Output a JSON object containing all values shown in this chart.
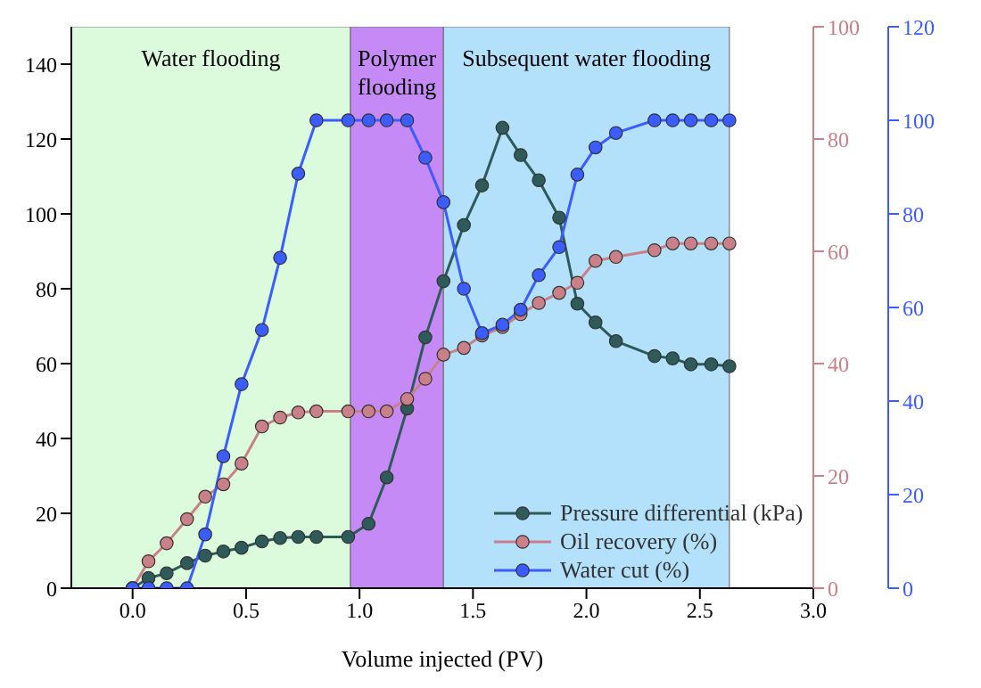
{
  "chart_data": {
    "type": "line",
    "xlabel": "Volume injected (PV)",
    "x": [
      0,
      0.07,
      0.15,
      0.24,
      0.32,
      0.4,
      0.48,
      0.57,
      0.65,
      0.73,
      0.81,
      0.95,
      1.04,
      1.12,
      1.21,
      1.29,
      1.37,
      1.46,
      1.54,
      1.63,
      1.71,
      1.79,
      1.88,
      1.96,
      2.04,
      2.13,
      2.3,
      2.38,
      2.46,
      2.55,
      2.63
    ],
    "series": [
      {
        "name": "Pressure differential (kPa)",
        "color": "#2e5a5a",
        "values": [
          0,
          2.7,
          4,
          6.7,
          8.7,
          9.8,
          10.8,
          12.5,
          13.4,
          13.7,
          13.7,
          13.7,
          17.2,
          29.6,
          48,
          67,
          82,
          97,
          107.6,
          123,
          115.7,
          109,
          99,
          76,
          71,
          66,
          62,
          61.4,
          59.8,
          59.8,
          59.3
        ]
      },
      {
        "name": "Oil recovery (%)",
        "color": "#c98088",
        "axis": "y2",
        "values": [
          0,
          4.8,
          8,
          12.3,
          16.3,
          18.5,
          22.2,
          28.8,
          30.4,
          31.3,
          31.5,
          31.5,
          31.5,
          31.5,
          33.7,
          37.3,
          41.6,
          42.8,
          45,
          46.5,
          48.8,
          50.8,
          52.6,
          54.4,
          58.3,
          59,
          60.2,
          61.4,
          61.4,
          61.4,
          61.4
        ]
      },
      {
        "name": "Water cut (%)",
        "color": "#3b5cff",
        "axis": "y3",
        "values": [
          0,
          0,
          0,
          0,
          11.5,
          28.2,
          43.6,
          55.2,
          70.6,
          88.6,
          100,
          100,
          100,
          100,
          100,
          92,
          82.5,
          64,
          54.5,
          56.3,
          59.5,
          66.9,
          72.9,
          88.4,
          94.2,
          97.3,
          100,
          100,
          100,
          100,
          100
        ]
      }
    ],
    "xlim": [
      -0.27,
      3.0
    ],
    "xticks": [
      {
        "value": 0,
        "label": "0.0"
      },
      {
        "value": 0.5,
        "label": "0.5"
      },
      {
        "value": 1,
        "label": "1.0"
      },
      {
        "value": 1.5,
        "label": "1.5"
      },
      {
        "value": 2,
        "label": "2.0"
      },
      {
        "value": 2.5,
        "label": "2.5"
      },
      {
        "value": 3,
        "label": "3.0"
      }
    ],
    "ylim": [
      0,
      150
    ],
    "yticks": [
      0,
      20,
      40,
      60,
      80,
      100,
      120,
      140
    ],
    "y2lim": [
      0,
      100
    ],
    "y2ticks": [
      0,
      20,
      40,
      60,
      80,
      100
    ],
    "y3lim": [
      0,
      120
    ],
    "y3ticks": [
      0,
      20,
      40,
      60,
      80,
      100,
      120
    ],
    "bands": [
      {
        "axis": "x",
        "from": -0.27,
        "to": 0.96,
        "label": "Water flooding",
        "color": "#dcfadc"
      },
      {
        "axis": "x",
        "from": 0.96,
        "to": 1.37,
        "label": "Polymer flooding",
        "color": "#c58af5"
      },
      {
        "axis": "x",
        "from": 1.37,
        "to": 2.63,
        "label": "Subsequent water flooding",
        "color": "#b3e0fa"
      }
    ],
    "marker": "circle",
    "line_style": "solid",
    "grid": false,
    "legend": "bottom right"
  }
}
